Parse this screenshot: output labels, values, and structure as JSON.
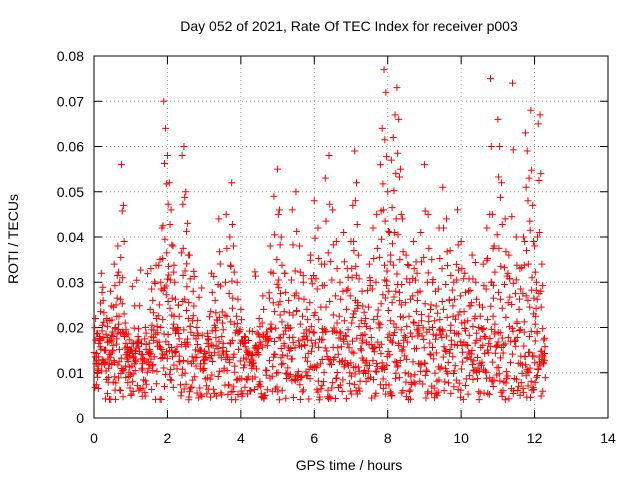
{
  "chart_data": {
    "type": "scatter",
    "title": "Day 052 of 2021, Rate Of TEC Index for receiver p003",
    "xlabel": "GPS time / hours",
    "ylabel": "ROTI / TECUs",
    "xlim": [
      0,
      14
    ],
    "ylim": [
      0,
      0.08
    ],
    "x_ticks": [
      0,
      2,
      4,
      6,
      8,
      10,
      12,
      14
    ],
    "y_ticks": [
      0,
      0.01,
      0.02,
      0.03,
      0.04,
      0.05,
      0.06,
      0.07,
      0.08
    ],
    "x_tick_labels": [
      "0",
      "2",
      "4",
      "6",
      "8",
      "10",
      "12",
      "14"
    ],
    "y_tick_labels": [
      "0",
      "0.01",
      "0.02",
      "0.03",
      "0.04",
      "0.05",
      "0.06",
      "0.07",
      "0.08"
    ],
    "grid": true,
    "marker": "+",
    "series": [
      {
        "name": "ROTI",
        "color": "#ff0000",
        "points": [
          [
            0.05,
            0.012
          ],
          [
            0.1,
            0.009
          ],
          [
            0.15,
            0.018
          ],
          [
            0.2,
            0.032
          ],
          [
            0.25,
            0.026
          ],
          [
            0.3,
            0.015
          ],
          [
            0.35,
            0.022
          ],
          [
            0.4,
            0.011
          ],
          [
            0.45,
            0.028
          ],
          [
            0.5,
            0.019
          ],
          [
            0.55,
            0.034
          ],
          [
            0.6,
            0.025
          ],
          [
            0.65,
            0.038
          ],
          [
            0.7,
            0.03
          ],
          [
            0.75,
            0.056
          ],
          [
            0.8,
            0.047
          ],
          [
            0.85,
            0.021
          ],
          [
            0.9,
            0.013
          ],
          [
            0.95,
            0.01
          ],
          [
            1.0,
            0.015
          ],
          [
            1.05,
            0.008
          ],
          [
            1.1,
            0.012
          ],
          [
            1.2,
            0.018
          ],
          [
            1.3,
            0.011
          ],
          [
            1.4,
            0.02
          ],
          [
            1.5,
            0.014
          ],
          [
            1.55,
            0.033
          ],
          [
            1.6,
            0.026
          ],
          [
            1.7,
            0.022
          ],
          [
            1.8,
            0.035
          ],
          [
            1.85,
            0.042
          ],
          [
            1.9,
            0.07
          ],
          [
            1.95,
            0.064
          ],
          [
            2.0,
            0.058
          ],
          [
            2.05,
            0.052
          ],
          [
            2.1,
            0.046
          ],
          [
            2.15,
            0.038
          ],
          [
            2.2,
            0.03
          ],
          [
            2.3,
            0.025
          ],
          [
            2.4,
            0.058
          ],
          [
            2.45,
            0.06
          ],
          [
            2.5,
            0.05
          ],
          [
            2.55,
            0.043
          ],
          [
            2.6,
            0.036
          ],
          [
            2.7,
            0.028
          ],
          [
            2.8,
            0.02
          ],
          [
            2.9,
            0.015
          ],
          [
            3.0,
            0.012
          ],
          [
            3.1,
            0.018
          ],
          [
            3.2,
            0.032
          ],
          [
            3.3,
            0.026
          ],
          [
            3.4,
            0.044
          ],
          [
            3.5,
            0.021
          ],
          [
            3.6,
            0.045
          ],
          [
            3.7,
            0.04
          ],
          [
            3.75,
            0.052
          ],
          [
            3.8,
            0.038
          ],
          [
            3.9,
            0.03
          ],
          [
            4.0,
            0.024
          ],
          [
            4.1,
            0.018
          ],
          [
            4.2,
            0.014
          ],
          [
            4.3,
            0.011
          ],
          [
            4.4,
            0.016
          ],
          [
            4.5,
            0.022
          ],
          [
            4.6,
            0.027
          ],
          [
            4.7,
            0.019
          ],
          [
            4.8,
            0.038
          ],
          [
            4.9,
            0.049
          ],
          [
            5.0,
            0.055
          ],
          [
            5.05,
            0.046
          ],
          [
            5.1,
            0.04
          ],
          [
            5.2,
            0.032
          ],
          [
            5.3,
            0.026
          ],
          [
            5.4,
            0.046
          ],
          [
            5.5,
            0.05
          ],
          [
            5.6,
            0.038
          ],
          [
            5.7,
            0.03
          ],
          [
            5.8,
            0.024
          ],
          [
            5.9,
            0.036
          ],
          [
            6.0,
            0.048
          ],
          [
            6.1,
            0.042
          ],
          [
            6.2,
            0.034
          ],
          [
            6.3,
            0.053
          ],
          [
            6.4,
            0.058
          ],
          [
            6.5,
            0.046
          ],
          [
            6.6,
            0.039
          ],
          [
            6.7,
            0.03
          ],
          [
            6.8,
            0.041
          ],
          [
            6.9,
            0.033
          ],
          [
            7.0,
            0.039
          ],
          [
            7.05,
            0.047
          ],
          [
            7.1,
            0.059
          ],
          [
            7.15,
            0.052
          ],
          [
            7.2,
            0.036
          ],
          [
            7.3,
            0.028
          ],
          [
            7.4,
            0.022
          ],
          [
            7.5,
            0.034
          ],
          [
            7.6,
            0.042
          ],
          [
            7.7,
            0.045
          ],
          [
            7.8,
            0.056
          ],
          [
            7.85,
            0.064
          ],
          [
            7.9,
            0.077
          ],
          [
            7.95,
            0.072
          ],
          [
            8.0,
            0.05
          ],
          [
            8.05,
            0.041
          ],
          [
            8.1,
            0.057
          ],
          [
            8.15,
            0.062
          ],
          [
            8.2,
            0.067
          ],
          [
            8.25,
            0.073
          ],
          [
            8.3,
            0.066
          ],
          [
            8.35,
            0.055
          ],
          [
            8.4,
            0.044
          ],
          [
            8.5,
            0.036
          ],
          [
            8.6,
            0.03
          ],
          [
            8.7,
            0.039
          ],
          [
            8.8,
            0.032
          ],
          [
            8.9,
            0.041
          ],
          [
            9.0,
            0.056
          ],
          [
            9.1,
            0.045
          ],
          [
            9.2,
            0.035
          ],
          [
            9.3,
            0.028
          ],
          [
            9.4,
            0.042
          ],
          [
            9.5,
            0.051
          ],
          [
            9.6,
            0.044
          ],
          [
            9.7,
            0.037
          ],
          [
            9.8,
            0.03
          ],
          [
            9.9,
            0.046
          ],
          [
            10.0,
            0.039
          ],
          [
            10.1,
            0.032
          ],
          [
            10.2,
            0.028
          ],
          [
            10.3,
            0.036
          ],
          [
            10.4,
            0.03
          ],
          [
            10.5,
            0.025
          ],
          [
            10.6,
            0.034
          ],
          [
            10.7,
            0.042
          ],
          [
            10.8,
            0.075
          ],
          [
            10.85,
            0.045
          ],
          [
            10.9,
            0.038
          ],
          [
            11.0,
            0.066
          ],
          [
            11.05,
            0.06
          ],
          [
            11.1,
            0.052
          ],
          [
            11.2,
            0.044
          ],
          [
            11.3,
            0.036
          ],
          [
            11.4,
            0.074
          ],
          [
            11.5,
            0.04
          ],
          [
            11.6,
            0.033
          ],
          [
            11.7,
            0.04
          ],
          [
            11.75,
            0.063
          ],
          [
            11.8,
            0.059
          ],
          [
            11.85,
            0.053
          ],
          [
            11.9,
            0.068
          ],
          [
            11.95,
            0.047
          ],
          [
            12.0,
            0.038
          ],
          [
            12.05,
            0.03
          ],
          [
            12.1,
            0.065
          ],
          [
            12.15,
            0.067
          ],
          [
            12.2,
            0.034
          ],
          [
            12.25,
            0.012
          ]
        ],
        "band": {
          "x_start": 0.0,
          "x_end": 12.3,
          "x_step": 0.012,
          "y_core_low": 0.004,
          "y_core_high": 0.02,
          "y_spread_high": 0.035,
          "min_y": 0.003
        }
      }
    ]
  }
}
